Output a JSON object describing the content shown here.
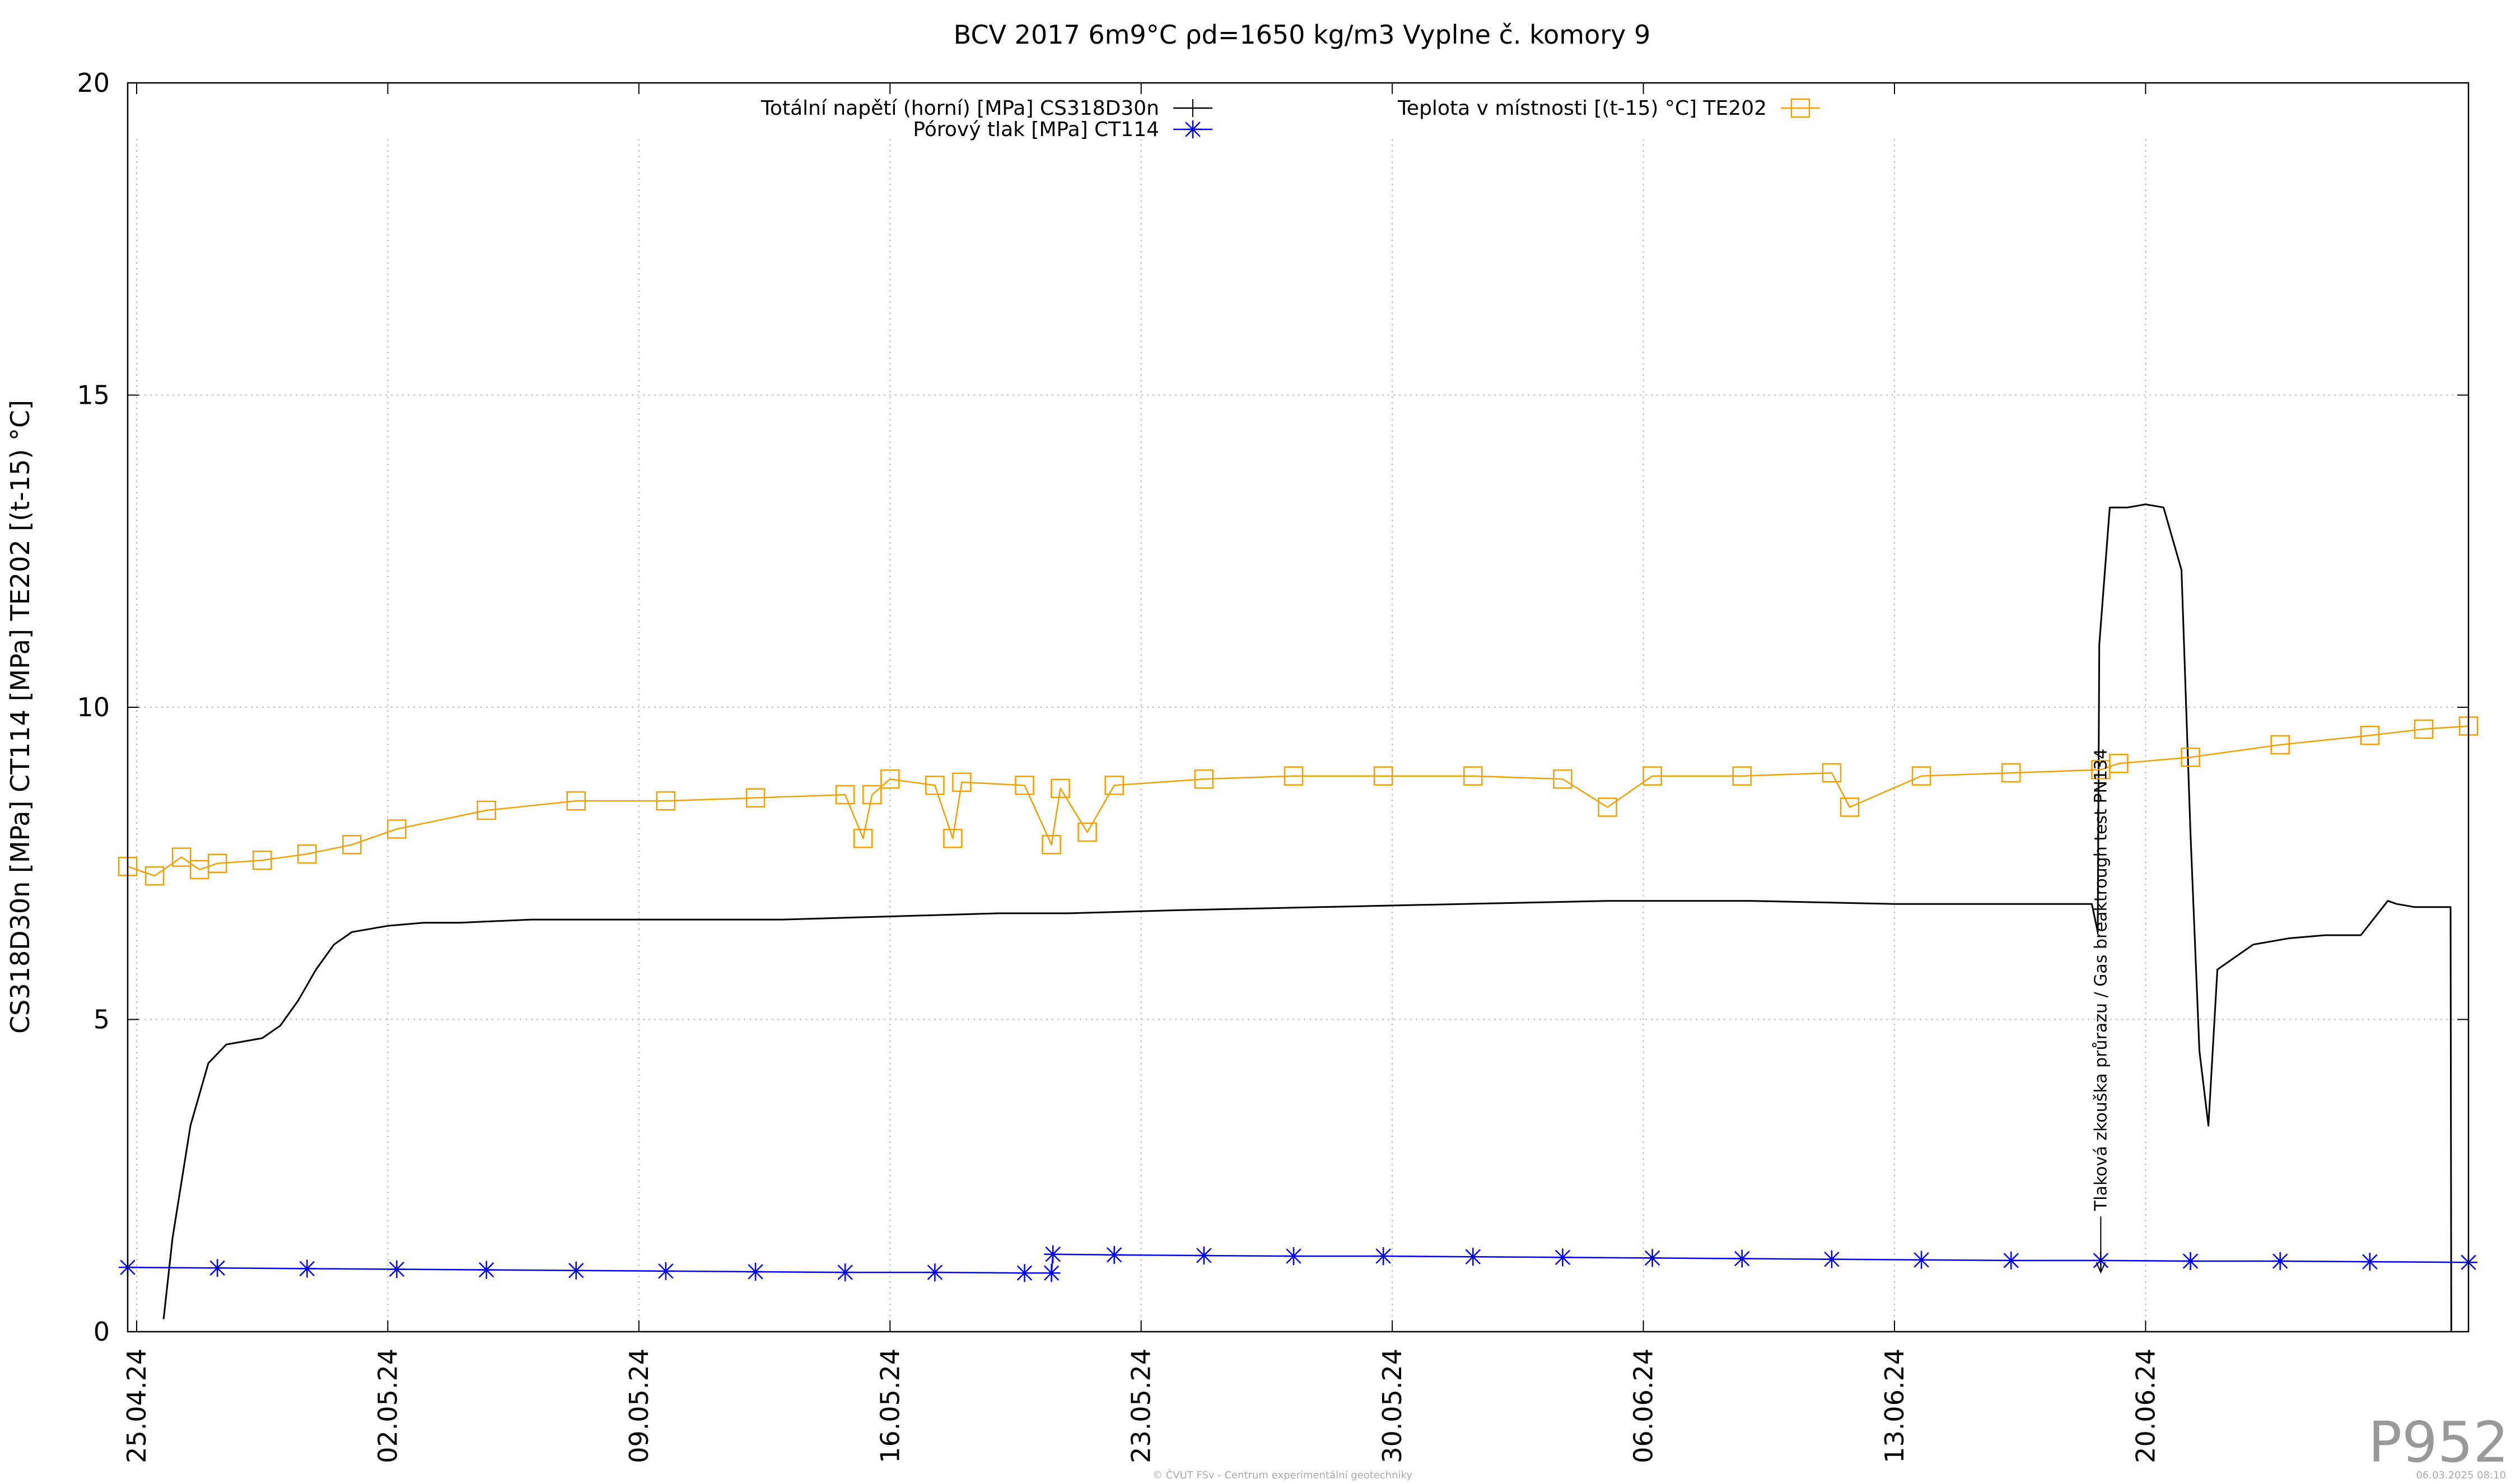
{
  "chart_data": {
    "type": "line",
    "title": "BCV 2017 6m9°C ρd=1650 kg/m3 Vyplne č. komory 9",
    "ylabel": "CS318D30n [MPa] CT114 [MPa] TE202 [(t-15) °C]",
    "xlabel": "",
    "ylim": [
      0,
      20
    ],
    "yticks": [
      0,
      5,
      10,
      15,
      20
    ],
    "ytick_labels": [
      "0",
      "5",
      "10",
      "15",
      "20"
    ],
    "xlim": [
      "2024-04-24T18:00",
      "2024-06-29T00:00"
    ],
    "xticks": [
      "2024-04-25",
      "2024-05-02",
      "2024-05-09",
      "2024-05-16",
      "2024-05-23",
      "2024-05-30",
      "2024-06-06",
      "2024-06-13",
      "2024-06-20"
    ],
    "xtick_labels": [
      "25.04.24",
      "02.05.24",
      "09.05.24",
      "16.05.24",
      "23.05.24",
      "30.05.24",
      "06.06.24",
      "13.06.24",
      "20.06.24"
    ],
    "grid": true,
    "legend_position": "top",
    "series": [
      {
        "name": "Totální napětí (horní) [MPa] CS318D30n",
        "color": "#000000",
        "marker": "plus",
        "x": [
          "2024-04-25T18:00",
          "2024-04-26T00:00",
          "2024-04-26T12:00",
          "2024-04-27T00:00",
          "2024-04-27T12:00",
          "2024-04-28T00:00",
          "2024-04-28T12:00",
          "2024-04-29T00:00",
          "2024-04-29T12:00",
          "2024-04-30T00:00",
          "2024-04-30T12:00",
          "2024-05-01T00:00",
          "2024-05-01T12:00",
          "2024-05-02T00:00",
          "2024-05-03T00:00",
          "2024-05-04T00:00",
          "2024-05-06T00:00",
          "2024-05-08T00:00",
          "2024-05-10T00:00",
          "2024-05-13T00:00",
          "2024-05-16T00:00",
          "2024-05-19T00:00",
          "2024-05-21T00:00",
          "2024-05-24T00:00",
          "2024-05-28T00:00",
          "2024-06-01T00:00",
          "2024-06-05T00:00",
          "2024-06-09T00:00",
          "2024-06-13T00:00",
          "2024-06-16T00:00",
          "2024-06-18T12:00",
          "2024-06-18T16:00",
          "2024-06-18T17:00",
          "2024-06-19T00:00",
          "2024-06-19T12:00",
          "2024-06-20T00:00",
          "2024-06-20T12:00",
          "2024-06-21T00:00",
          "2024-06-21T06:00",
          "2024-06-21T12:00",
          "2024-06-21T18:00",
          "2024-06-22T00:00",
          "2024-06-23T00:00",
          "2024-06-24T00:00",
          "2024-06-25T00:00",
          "2024-06-26T00:00",
          "2024-06-26T18:00",
          "2024-06-27T00:00",
          "2024-06-27T12:00",
          "2024-06-28T00:00",
          "2024-06-28T12:00",
          "2024-06-28T12:30",
          "2024-06-28T13:00"
        ],
        "y": [
          0.2,
          1.5,
          3.3,
          4.3,
          4.6,
          4.65,
          4.7,
          4.9,
          5.3,
          5.8,
          6.2,
          6.4,
          6.45,
          6.5,
          6.55,
          6.55,
          6.6,
          6.6,
          6.6,
          6.6,
          6.65,
          6.7,
          6.7,
          6.75,
          6.8,
          6.85,
          6.9,
          6.9,
          6.85,
          6.85,
          6.85,
          6.4,
          11.0,
          13.2,
          13.2,
          13.25,
          13.2,
          12.2,
          8.0,
          4.5,
          3.3,
          5.8,
          6.2,
          6.3,
          6.35,
          6.35,
          6.9,
          6.85,
          6.8,
          6.8,
          6.8,
          0.0,
          0.0
        ]
      },
      {
        "name": "Pórový tlak [MPa] CT114",
        "color": "#0000ee",
        "marker": "star",
        "x": [
          "2024-04-24T18:00",
          "2024-04-27T06:00",
          "2024-04-29T18:00",
          "2024-05-02T06:00",
          "2024-05-04T18:00",
          "2024-05-07T06:00",
          "2024-05-09T18:00",
          "2024-05-12T06:00",
          "2024-05-14T18:00",
          "2024-05-17T06:00",
          "2024-05-19T18:00",
          "2024-05-20T12:00",
          "2024-05-20T13:00",
          "2024-05-22T06:00",
          "2024-05-24T18:00",
          "2024-05-27T06:00",
          "2024-05-29T18:00",
          "2024-06-01T06:00",
          "2024-06-03T18:00",
          "2024-06-06T06:00",
          "2024-06-08T18:00",
          "2024-06-11T06:00",
          "2024-06-13T18:00",
          "2024-06-16T06:00",
          "2024-06-18T18:00",
          "2024-06-21T06:00",
          "2024-06-23T18:00",
          "2024-06-26T06:00",
          "2024-06-29T00:00"
        ],
        "y": [
          1.03,
          1.02,
          1.01,
          1.0,
          0.99,
          0.98,
          0.97,
          0.96,
          0.95,
          0.95,
          0.94,
          0.94,
          1.24,
          1.23,
          1.22,
          1.21,
          1.21,
          1.2,
          1.19,
          1.18,
          1.17,
          1.16,
          1.15,
          1.14,
          1.14,
          1.13,
          1.13,
          1.12,
          1.11
        ]
      },
      {
        "name": "Teplota v místnosti [(t-15) °C] TE202",
        "color": "#f0a000",
        "marker": "square",
        "x": [
          "2024-04-24T18:00",
          "2024-04-25T12:00",
          "2024-04-26T06:00",
          "2024-04-26T18:00",
          "2024-04-27T06:00",
          "2024-04-28T12:00",
          "2024-04-29T18:00",
          "2024-05-01T00:00",
          "2024-05-02T06:00",
          "2024-05-04T18:00",
          "2024-05-07T06:00",
          "2024-05-09T18:00",
          "2024-05-12T06:00",
          "2024-05-14T18:00",
          "2024-05-15T06:00",
          "2024-05-15T12:00",
          "2024-05-16T00:00",
          "2024-05-17T06:00",
          "2024-05-17T18:00",
          "2024-05-18T00:00",
          "2024-05-19T18:00",
          "2024-05-20T12:00",
          "2024-05-20T18:00",
          "2024-05-21T12:00",
          "2024-05-22T06:00",
          "2024-05-24T18:00",
          "2024-05-27T06:00",
          "2024-05-29T18:00",
          "2024-06-01T06:00",
          "2024-06-03T18:00",
          "2024-06-05T00:00",
          "2024-06-06T06:00",
          "2024-06-08T18:00",
          "2024-06-11T06:00",
          "2024-06-11T18:00",
          "2024-06-13T18:00",
          "2024-06-16T06:00",
          "2024-06-18T18:00",
          "2024-06-19T06:00",
          "2024-06-21T06:00",
          "2024-06-23T18:00",
          "2024-06-26T06:00",
          "2024-06-27T18:00",
          "2024-06-29T00:00"
        ],
        "y": [
          7.45,
          7.3,
          7.6,
          7.4,
          7.5,
          7.55,
          7.65,
          7.8,
          8.05,
          8.35,
          8.5,
          8.5,
          8.55,
          8.6,
          7.9,
          8.6,
          8.85,
          8.75,
          7.9,
          8.8,
          8.75,
          7.8,
          8.7,
          8.0,
          8.75,
          8.85,
          8.9,
          8.9,
          8.9,
          8.85,
          8.4,
          8.9,
          8.9,
          8.95,
          8.4,
          8.9,
          8.95,
          9.0,
          9.1,
          9.2,
          9.4,
          9.55,
          9.65,
          9.7
        ]
      }
    ],
    "annotations": [
      {
        "text": "Tlaková zkouška průrazu / Gas breaktrough test PN134",
        "x": "2024-06-18T18:00",
        "arrow_y": 0.95,
        "orientation": "vertical"
      }
    ]
  },
  "meta": {
    "watermark": "P952",
    "footer_center": "© ČVUT FSv - Centrum experimentální geotechniky",
    "footer_right": "06.03.2025 08:10"
  }
}
